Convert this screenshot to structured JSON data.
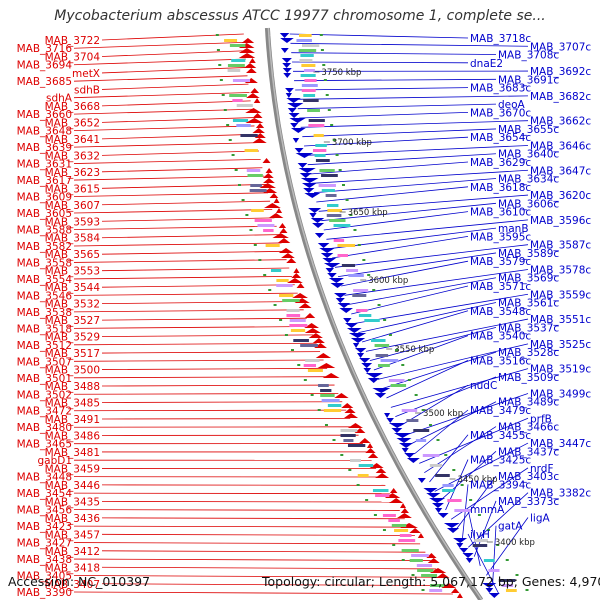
{
  "title": "Mycobacterium abscessus ATCC 19977 chromosome 1, complete se...",
  "accession": "Accession: NC_010397",
  "topology": "Topology: circular; Length: 5,067,172 bp; Genes: 4,970",
  "colors": {
    "forward": "#dd0000",
    "reverse": "#0000cc",
    "backbone": "#888888"
  },
  "kbp_labels": [
    "3750 kbp",
    "3700 kbp",
    "3650 kbp",
    "3600 kbp",
    "3550 kbp",
    "3500 kbp",
    "3450 kbp",
    "3400 kbp"
  ],
  "left_labels": [
    "MAB_3722",
    "MAB_3716",
    "MAB_3704",
    "MAB_3694",
    "metX",
    "MAB_3685",
    "sdhB",
    "sdhA",
    "MAB_3668",
    "MAB_3660",
    "MAB_3652",
    "MAB_3648",
    "MAB_3641",
    "MAB_3639",
    "MAB_3632",
    "MAB_3631",
    "MAB_3623",
    "MAB_3617",
    "MAB_3615",
    "MAB_3609",
    "MAB_3607",
    "MAB_3605",
    "MAB_3593",
    "MAB_3588",
    "MAB_3584",
    "MAB_3582",
    "MAB_3565",
    "MAB_3558",
    "MAB_3553",
    "MAB_3554",
    "MAB_3544",
    "MAB_3546",
    "MAB_3532",
    "MAB_3538",
    "MAB_3527",
    "MAB_3518",
    "MAB_3529",
    "MAB_3512",
    "MAB_3517",
    "MAB_3507",
    "MAB_3500",
    "MAB_3501",
    "MAB_3488",
    "MAB_3502",
    "MAB_3485",
    "MAB_3472",
    "MAB_3491",
    "MAB_3480",
    "MAB_3486",
    "MAB_3465",
    "MAB_3481",
    "gabD1",
    "MAB_3459",
    "MAB_3448",
    "MAB_3446",
    "MAB_3454",
    "MAB_3435",
    "MAB_3456",
    "MAB_3436",
    "MAB_3423",
    "MAB_3457",
    "MAB_3427",
    "MAB_3412",
    "MAB_3438",
    "MAB_3418",
    "MAB_3405",
    "MAB_3407",
    "MAB_3390"
  ],
  "right_labels": [
    "MAB_3718c",
    "MAB_3707c",
    "MAB_3708c",
    "dnaE2",
    "MAB_3692c",
    "MAB_3691c",
    "MAB_3683c",
    "MAB_3682c",
    "deoA",
    "MAB_3670c",
    "MAB_3662c",
    "MAB_3655c",
    "MAB_3654c",
    "MAB_3646c",
    "MAB_3640c",
    "MAB_3629c",
    "MAB_3647c",
    "MAB_3634c",
    "MAB_3618c",
    "MAB_3620c",
    "MAB_3606c",
    "MAB_3610c",
    "MAB_3596c",
    "manB",
    "MAB_3595c",
    "MAB_3587c",
    "MAB_3589c",
    "MAB_3579c",
    "MAB_3578c",
    "MAB_3569c",
    "MAB_3571c",
    "MAB_3559c",
    "MAB_3561c",
    "MAB_3548c",
    "MAB_3551c",
    "MAB_3537c",
    "MAB_3540c",
    "MAB_3525c",
    "MAB_3528c",
    "MAB_3516c",
    "MAB_3519c",
    "MAB_3509c",
    "nudC",
    "MAB_3499c",
    "MAB_3489c",
    "MAB_3479c",
    "prfB",
    "MAB_3466c",
    "MAB_3455c",
    "MAB_3447c",
    "MAB_3437c",
    "MAB_3425c",
    "nrdF",
    "MAB_3403c",
    "MAB_3394c",
    "MAB_3382c",
    "MAB_3373c",
    "mnmA",
    "ligA",
    "gatA",
    "ilvH"
  ]
}
